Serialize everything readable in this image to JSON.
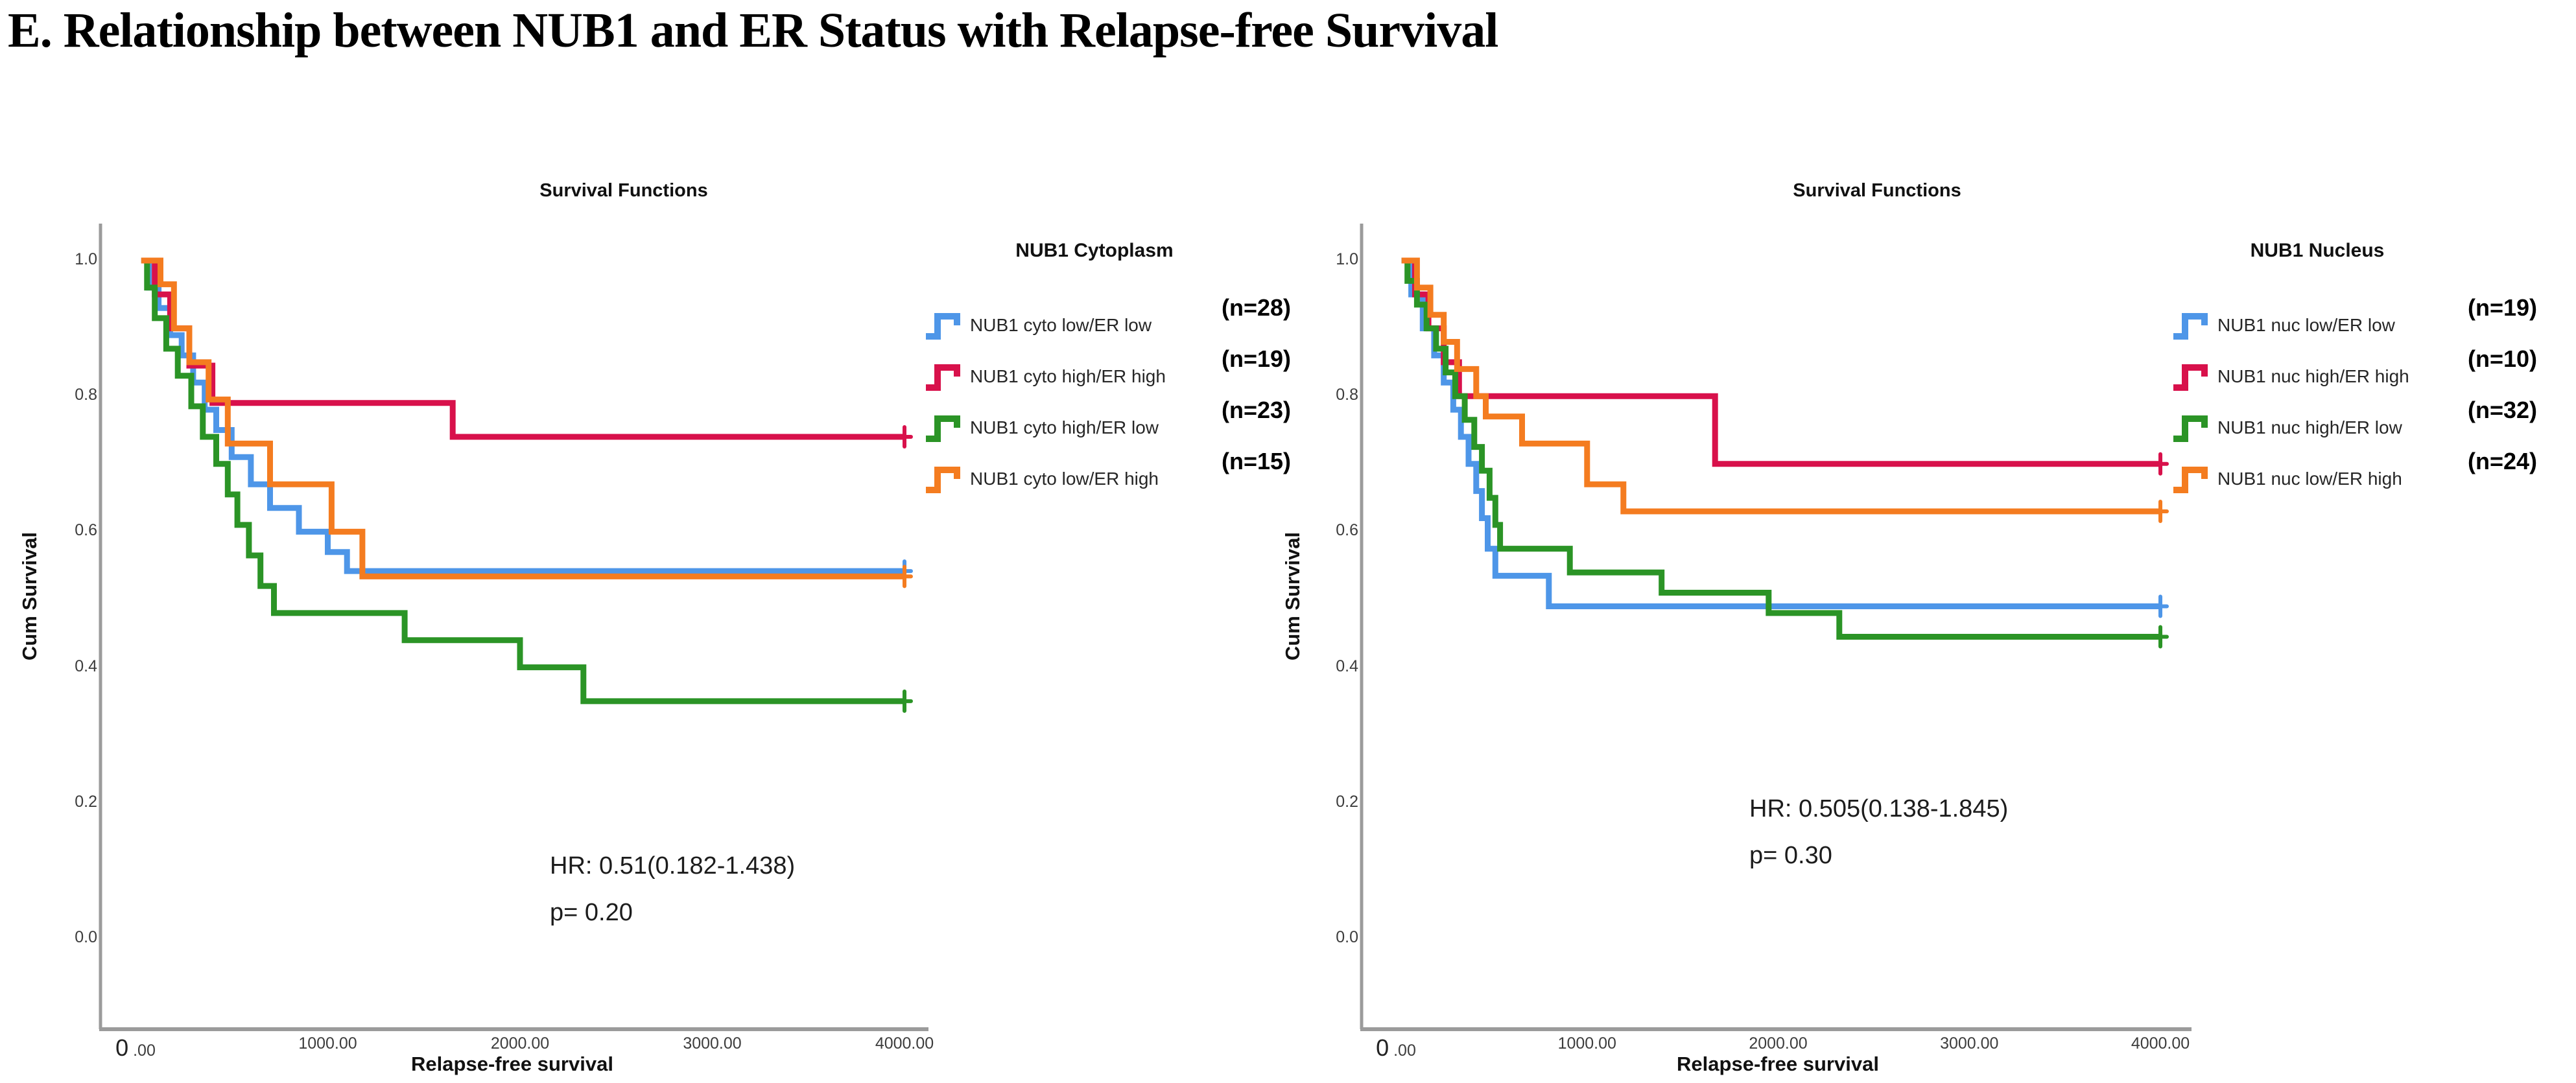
{
  "page": {
    "title": "E. Relationship between NUB1 and ER Status with Relapse-free Survival"
  },
  "chart_data": [
    {
      "id": "cytoplasm",
      "type": "line",
      "subtype": "kaplan-meier-step",
      "title": "Survival Functions",
      "xlabel": "Relapse-free survival",
      "ylabel": "Cum Survival",
      "legend_title": "NUB1 Cytoplasm",
      "annotation_lines": [
        "HR: 0.51(0.182-1.438)",
        "p= 0.20"
      ],
      "xlim": [
        0,
        4000
      ],
      "ylim": [
        0.0,
        1.0
      ],
      "grid": false,
      "legend_position": "right",
      "x_ticks": [
        {
          "label": "0 .00",
          "value": 0,
          "big_zero": true
        },
        {
          "label": "1000.00",
          "value": 1000
        },
        {
          "label": "2000.00",
          "value": 2000
        },
        {
          "label": "3000.00",
          "value": 3000
        },
        {
          "label": "4000.00",
          "value": 4000
        }
      ],
      "y_ticks": [
        {
          "label": "1.0",
          "value": 1.0
        },
        {
          "label": "0.8",
          "value": 0.8
        },
        {
          "label": "0.6",
          "value": 0.6
        },
        {
          "label": "0.4",
          "value": 0.4
        },
        {
          "label": "0.2",
          "value": 0.2
        },
        {
          "label": "0.0",
          "value": 0.0
        }
      ],
      "series": [
        {
          "key": "cyto-low-er-low",
          "label": "NUB1 cyto low/ER low",
          "n_label": "(n=28)",
          "n": 28,
          "color": "#4E96E8",
          "censored_at_end": true,
          "end_x": 4000,
          "points": [
            [
              30,
              1.0
            ],
            [
              70,
              0.96
            ],
            [
              120,
              0.93
            ],
            [
              180,
              0.89
            ],
            [
              240,
              0.86
            ],
            [
              300,
              0.82
            ],
            [
              360,
              0.78
            ],
            [
              420,
              0.75
            ],
            [
              500,
              0.71
            ],
            [
              600,
              0.67
            ],
            [
              700,
              0.635
            ],
            [
              850,
              0.6
            ],
            [
              1000,
              0.57
            ],
            [
              1100,
              0.542
            ]
          ]
        },
        {
          "key": "cyto-high-er-high",
          "label": "NUB1 cyto high/ER high",
          "n_label": "(n=19)",
          "n": 19,
          "color": "#D8114B",
          "censored_at_end": true,
          "end_x": 4000,
          "points": [
            [
              30,
              1.0
            ],
            [
              100,
              0.95
            ],
            [
              180,
              0.9
            ],
            [
              280,
              0.845
            ],
            [
              400,
              0.79
            ],
            [
              1650,
              0.74
            ]
          ]
        },
        {
          "key": "cyto-high-er-low",
          "label": "NUB1 cyto high/ER low",
          "n_label": "(n=23)",
          "n": 23,
          "color": "#2B9426",
          "censored_at_end": true,
          "end_x": 4000,
          "points": [
            [
              30,
              1.0
            ],
            [
              60,
              0.96
            ],
            [
              100,
              0.915
            ],
            [
              160,
              0.87
            ],
            [
              220,
              0.83
            ],
            [
              290,
              0.785
            ],
            [
              350,
              0.74
            ],
            [
              420,
              0.7
            ],
            [
              480,
              0.655
            ],
            [
              530,
              0.61
            ],
            [
              590,
              0.565
            ],
            [
              650,
              0.52
            ],
            [
              720,
              0.48
            ],
            [
              1400,
              0.44
            ],
            [
              2000,
              0.4
            ],
            [
              2330,
              0.35
            ]
          ]
        },
        {
          "key": "cyto-low-er-high",
          "label": "NUB1 cyto low/ER high",
          "n_label": "(n=15)",
          "n": 15,
          "color": "#F47C20",
          "censored_at_end": true,
          "end_x": 4000,
          "points": [
            [
              30,
              1.0
            ],
            [
              130,
              0.965
            ],
            [
              200,
              0.9
            ],
            [
              280,
              0.85
            ],
            [
              380,
              0.795
            ],
            [
              480,
              0.73
            ],
            [
              700,
              0.67
            ],
            [
              1020,
              0.6
            ],
            [
              1180,
              0.534
            ]
          ]
        }
      ]
    },
    {
      "id": "nucleus",
      "type": "line",
      "subtype": "kaplan-meier-step",
      "title": "Survival Functions",
      "xlabel": "Relapse-free survival",
      "ylabel": "Cum Survival",
      "legend_title": "NUB1 Nucleus",
      "annotation_lines": [
        "HR: 0.505(0.138-1.845)",
        "p= 0.30"
      ],
      "xlim": [
        0,
        4000
      ],
      "ylim": [
        0.0,
        1.0
      ],
      "grid": false,
      "legend_position": "right",
      "x_ticks": [
        {
          "label": "0 .00",
          "value": 0,
          "big_zero": true
        },
        {
          "label": "1000.00",
          "value": 1000
        },
        {
          "label": "2000.00",
          "value": 2000
        },
        {
          "label": "3000.00",
          "value": 3000
        },
        {
          "label": "4000.00",
          "value": 4000
        }
      ],
      "y_ticks": [
        {
          "label": "1.0",
          "value": 1.0
        },
        {
          "label": "0.8",
          "value": 0.8
        },
        {
          "label": "0.6",
          "value": 0.6
        },
        {
          "label": "0.4",
          "value": 0.4
        },
        {
          "label": "0.2",
          "value": 0.2
        },
        {
          "label": "0.0",
          "value": 0.0
        }
      ],
      "series": [
        {
          "key": "nuc-low-er-low",
          "label": "NUB1 nuc low/ER low",
          "n_label": "(n=19)",
          "n": 19,
          "color": "#4E96E8",
          "censored_at_end": true,
          "end_x": 4000,
          "points": [
            [
              30,
              1.0
            ],
            [
              80,
              0.95
            ],
            [
              140,
              0.9
            ],
            [
              200,
              0.86
            ],
            [
              250,
              0.82
            ],
            [
              300,
              0.78
            ],
            [
              340,
              0.74
            ],
            [
              380,
              0.7
            ],
            [
              420,
              0.66
            ],
            [
              450,
              0.62
            ],
            [
              480,
              0.575
            ],
            [
              520,
              0.535
            ],
            [
              800,
              0.49
            ]
          ]
        },
        {
          "key": "nuc-high-er-high",
          "label": "NUB1 nuc high/ER high",
          "n_label": "(n=10)",
          "n": 10,
          "color": "#D8114B",
          "censored_at_end": true,
          "end_x": 4000,
          "points": [
            [
              30,
              1.0
            ],
            [
              100,
              0.95
            ],
            [
              170,
              0.9
            ],
            [
              250,
              0.85
            ],
            [
              330,
              0.8
            ],
            [
              1670,
              0.7
            ]
          ]
        },
        {
          "key": "nuc-high-er-low",
          "label": "NUB1 nuc high/ER low",
          "n_label": "(n=32)",
          "n": 32,
          "color": "#2B9426",
          "censored_at_end": true,
          "end_x": 4000,
          "points": [
            [
              30,
              1.0
            ],
            [
              60,
              0.97
            ],
            [
              110,
              0.935
            ],
            [
              160,
              0.9
            ],
            [
              210,
              0.87
            ],
            [
              260,
              0.835
            ],
            [
              310,
              0.8
            ],
            [
              360,
              0.765
            ],
            [
              410,
              0.725
            ],
            [
              450,
              0.69
            ],
            [
              490,
              0.65
            ],
            [
              520,
              0.61
            ],
            [
              545,
              0.575
            ],
            [
              910,
              0.54
            ],
            [
              1390,
              0.51
            ],
            [
              1950,
              0.48
            ],
            [
              2320,
              0.445
            ]
          ]
        },
        {
          "key": "nuc-low-er-high",
          "label": "NUB1 nuc low/ER high",
          "n_label": "(n=24)",
          "n": 24,
          "color": "#F47C20",
          "censored_at_end": true,
          "end_x": 4000,
          "points": [
            [
              30,
              1.0
            ],
            [
              110,
              0.96
            ],
            [
              180,
              0.92
            ],
            [
              250,
              0.88
            ],
            [
              320,
              0.84
            ],
            [
              420,
              0.8
            ],
            [
              470,
              0.77
            ],
            [
              660,
              0.73
            ],
            [
              1000,
              0.67
            ],
            [
              1190,
              0.63
            ]
          ]
        }
      ]
    }
  ],
  "style": {
    "axis_color": "#9B9B9B",
    "series_colors": {
      "blue": "#4E96E8",
      "red": "#D8114B",
      "green": "#2B9426",
      "orange": "#F47C20"
    }
  }
}
